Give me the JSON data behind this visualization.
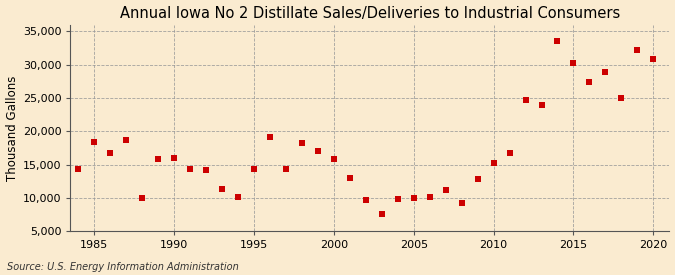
{
  "title": "Annual Iowa No 2 Distillate Sales/Deliveries to Industrial Consumers",
  "ylabel": "Thousand Gallons",
  "source": "Source: U.S. Energy Information Administration",
  "background_color": "#faebd0",
  "plot_bg_color": "#faebd0",
  "marker_color": "#cc0000",
  "years": [
    1984,
    1985,
    1986,
    1987,
    1988,
    1989,
    1990,
    1991,
    1992,
    1993,
    1994,
    1995,
    1996,
    1997,
    1998,
    1999,
    2000,
    2001,
    2002,
    2003,
    2004,
    2005,
    2006,
    2007,
    2008,
    2009,
    2010,
    2011,
    2012,
    2013,
    2014,
    2015,
    2016,
    2017,
    2018,
    2019,
    2020
  ],
  "values": [
    14300,
    18400,
    16700,
    18700,
    10000,
    15900,
    16000,
    14400,
    14200,
    11400,
    10200,
    14300,
    19200,
    14400,
    18200,
    17000,
    15900,
    13000,
    9700,
    7600,
    9800,
    10000,
    10200,
    11200,
    9200,
    12800,
    15200,
    16700,
    24700,
    23900,
    33600,
    30200,
    27400,
    28900,
    25000,
    32200,
    30800
  ],
  "xlim": [
    1983.5,
    2021
  ],
  "ylim": [
    5000,
    36000
  ],
  "yticks": [
    5000,
    10000,
    15000,
    20000,
    25000,
    30000,
    35000
  ],
  "xticks": [
    1985,
    1990,
    1995,
    2000,
    2005,
    2010,
    2015,
    2020
  ],
  "title_fontsize": 10.5,
  "label_fontsize": 8.5,
  "tick_fontsize": 8,
  "source_fontsize": 7
}
